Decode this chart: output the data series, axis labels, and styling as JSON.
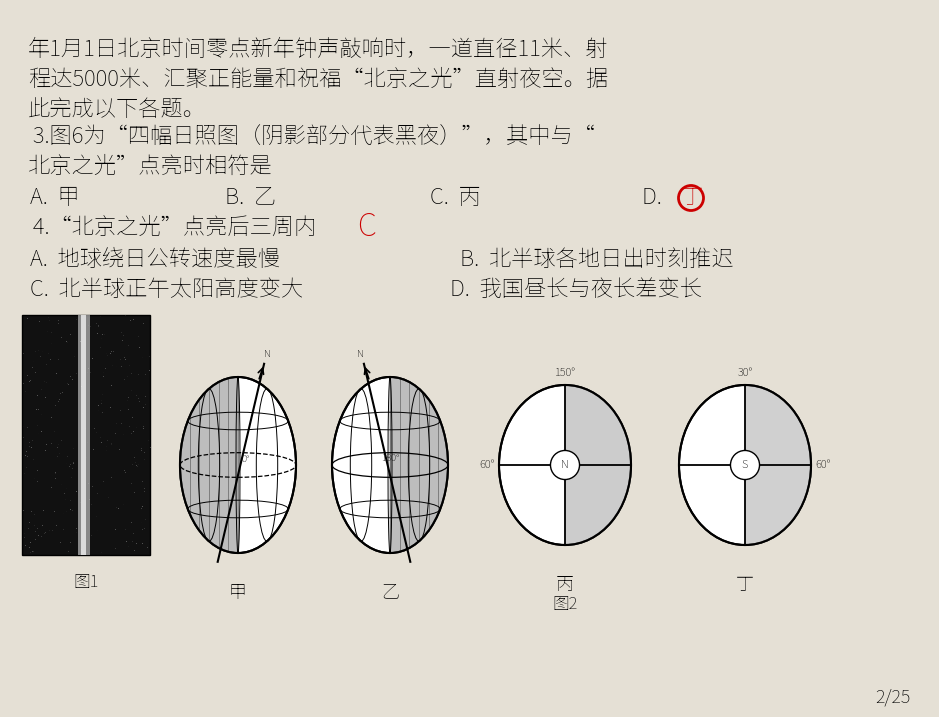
{
  "bg_color": "#e5e0d5",
  "text_color": "#000000",
  "red_color": "#cc0000",
  "page_num": "2/25",
  "line1": "年1月1日北京时间零点新年钟声敲响时，一道直径11米、射",
  "line2": "程达5000米、汇聚正能量和祝福“北京之光”直射夜空。据",
  "line3": "此完成以下各题。",
  "line4": " 3.图6为“四幅日照图（阴影部分代表黑夜）”，其中与“",
  "line5": "北京之光”点亮时相符是",
  "line6_a": "A.  甲",
  "line6_b": "B.  乙",
  "line6_c": "C.  丙",
  "line6_d": "D. ",
  "line6_d_red": "丁",
  "line7": " 4.“北京之光”点亮后三周内",
  "line7_red": "C",
  "line8_a": "A.  地球绕日公转速度最慢",
  "line8_b": "B.  北半球各地日出时刻推迟",
  "line9_a": "C.  北半球正午太阳高度变大",
  "line9_b": "D.  我国昼长与夜长差变长",
  "label_tu1": "图1",
  "label_tu2": "图2",
  "label_jia": "甲",
  "label_yi": "乙",
  "label_bing": "丙",
  "label_ding": "丁",
  "font_size_main": 16,
  "font_size_small": 12,
  "font_size_page": 13
}
